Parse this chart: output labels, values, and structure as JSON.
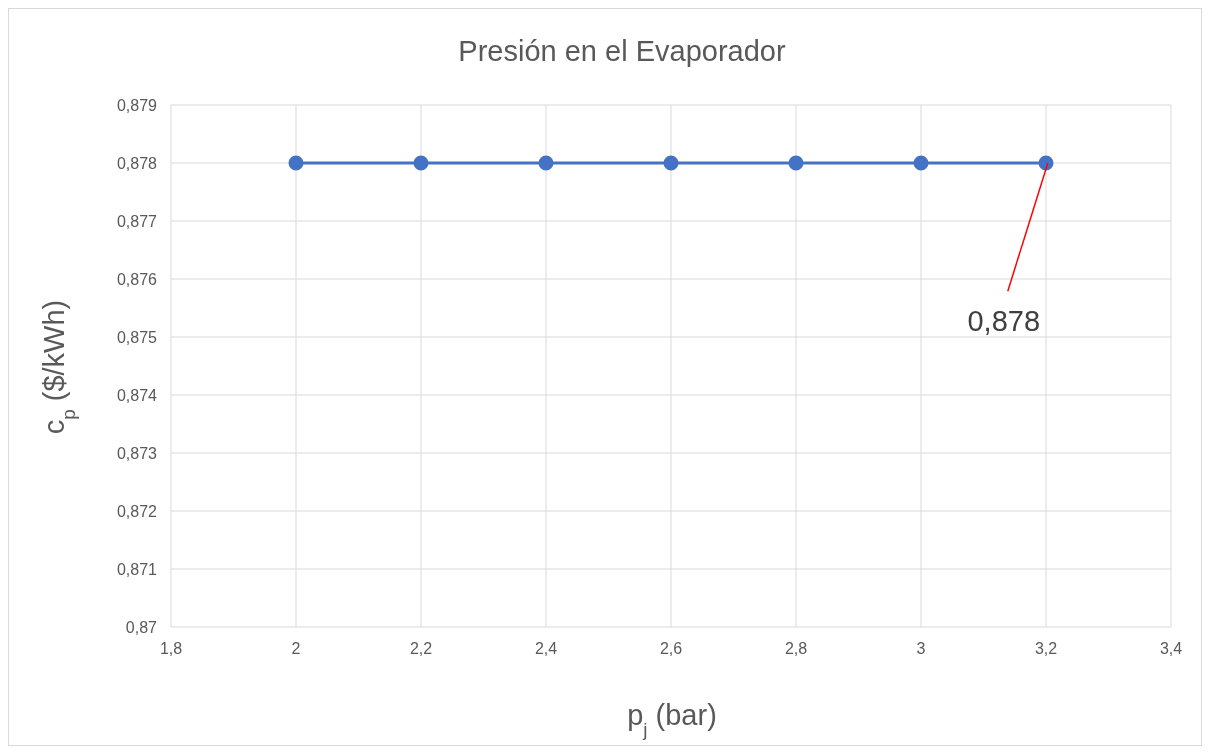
{
  "chart_data": {
    "type": "line",
    "title": "Presión en el Evaporador",
    "xlabel": "p$_{j}$ (bar)",
    "ylabel": "c$_{p}$ ($/kWh)",
    "x": [
      2,
      2.2,
      2.4,
      2.6,
      2.8,
      3,
      3.2
    ],
    "series": [
      {
        "color": "#4472c4",
        "values": [
          0.878,
          0.878,
          0.878,
          0.878,
          0.878,
          0.878,
          0.878
        ]
      }
    ],
    "xlim": [
      1.8,
      3.4
    ],
    "xticks": [
      {
        "value": 1.8,
        "label": "1,8"
      },
      {
        "value": 2,
        "label": "2"
      },
      {
        "value": 2.2,
        "label": "2,2"
      },
      {
        "value": 2.4,
        "label": "2,4"
      },
      {
        "value": 2.6,
        "label": "2,6"
      },
      {
        "value": 2.8,
        "label": "2,8"
      },
      {
        "value": 3,
        "label": "3"
      },
      {
        "value": 3.2,
        "label": "3,2"
      },
      {
        "value": 3.4,
        "label": "3,4"
      }
    ],
    "ylim": [
      0.87,
      0.879
    ],
    "yticks": [
      {
        "value": 0.87,
        "label": "0,87"
      },
      {
        "value": 0.871,
        "label": "0,871"
      },
      {
        "value": 0.872,
        "label": "0,872"
      },
      {
        "value": 0.873,
        "label": "0,873"
      },
      {
        "value": 0.874,
        "label": "0,874"
      },
      {
        "value": 0.875,
        "label": "0,875"
      },
      {
        "value": 0.876,
        "label": "0,876"
      },
      {
        "value": 0.877,
        "label": "0,877"
      },
      {
        "value": 0.878,
        "label": "0,878"
      },
      {
        "value": 0.879,
        "label": "0,879"
      }
    ],
    "annotations": [
      {
        "text": "0,878",
        "x": 3.2,
        "y": 0.878
      }
    ],
    "grid": true,
    "marker": "circle",
    "line_style": "solid"
  }
}
